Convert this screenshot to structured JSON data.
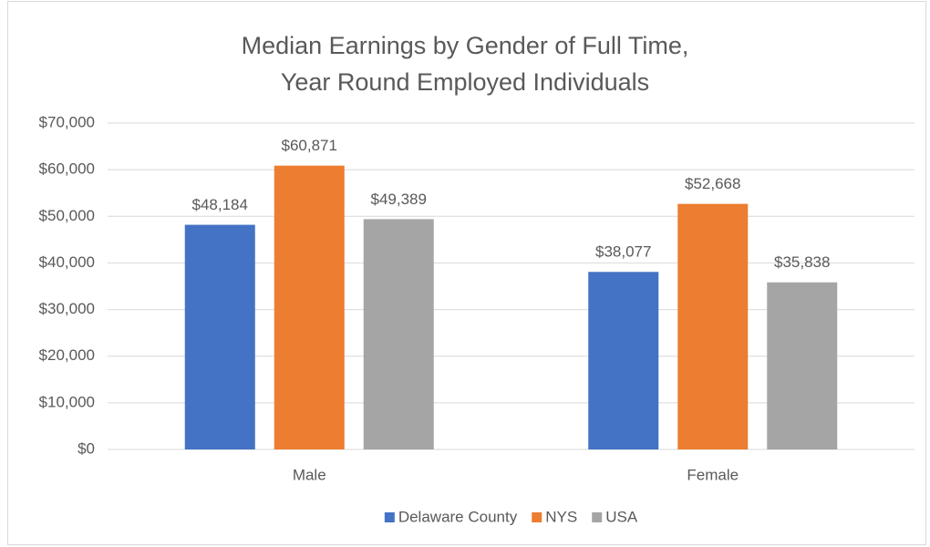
{
  "chart_data": {
    "type": "bar",
    "title": "Median Earnings by Gender of Full Time, Year Round Employed Individuals",
    "categories": [
      "Male",
      "Female"
    ],
    "series": [
      {
        "name": "Delaware County",
        "color": "#4472c4",
        "values": [
          48184,
          38077
        ],
        "value_labels": [
          "$48,184",
          "$38,077"
        ]
      },
      {
        "name": "NYS",
        "color": "#ed7d31",
        "values": [
          60871,
          52668
        ],
        "value_labels": [
          "$60,871",
          "$52,668"
        ]
      },
      {
        "name": "USA",
        "color": "#a5a5a5",
        "values": [
          49389,
          35838
        ],
        "value_labels": [
          "$49,389",
          "$35,838"
        ]
      }
    ],
    "ylim": [
      0,
      70000
    ],
    "yticks": [
      {
        "value": 0,
        "label": "$0"
      },
      {
        "value": 10000,
        "label": "$10,000"
      },
      {
        "value": 20000,
        "label": "$20,000"
      },
      {
        "value": 30000,
        "label": "$30,000"
      },
      {
        "value": 40000,
        "label": "$40,000"
      },
      {
        "value": 50000,
        "label": "$50,000"
      },
      {
        "value": 60000,
        "label": "$60,000"
      },
      {
        "value": 70000,
        "label": "$70,000"
      }
    ],
    "grid": true,
    "legend": "bottom"
  }
}
